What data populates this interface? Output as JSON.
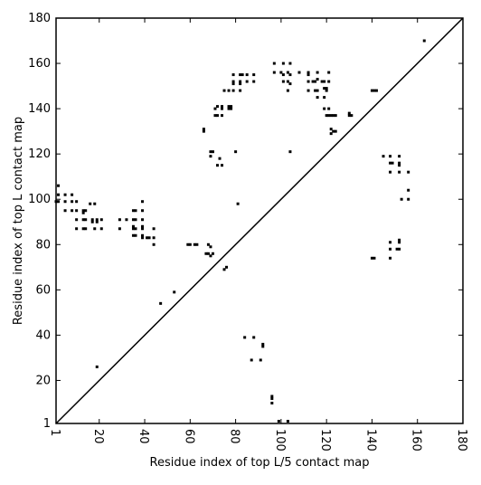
{
  "chart_data": {
    "type": "scatter",
    "x_label": "Residue index of top L/5 contact map",
    "y_label": "Residue index of top L contact map",
    "xlim": [
      1,
      180
    ],
    "ylim": [
      1,
      180
    ],
    "xticks": [
      1,
      20,
      40,
      60,
      80,
      100,
      120,
      140,
      160,
      180
    ],
    "yticks": [
      1,
      20,
      40,
      60,
      80,
      100,
      120,
      140,
      160,
      180
    ],
    "color": "#000000",
    "x": [
      2,
      2,
      5,
      8,
      1,
      2,
      5,
      8,
      10,
      5,
      8,
      10,
      13,
      14,
      13,
      10,
      13,
      14,
      17,
      19,
      21,
      16,
      18,
      10,
      13,
      14,
      18,
      21,
      17,
      19,
      29,
      32,
      35,
      36,
      39,
      35,
      36,
      39,
      39,
      29,
      35,
      36,
      39,
      44,
      35,
      39,
      35,
      36,
      39,
      41,
      42,
      44,
      39,
      44,
      19,
      47,
      53,
      59,
      60,
      62,
      63,
      68,
      69,
      67,
      68,
      69,
      70,
      75,
      76,
      66,
      66,
      69,
      70,
      69,
      71,
      72,
      74,
      74,
      71,
      72,
      74,
      73,
      72,
      74,
      75,
      77,
      79,
      77,
      78,
      77,
      78,
      79,
      79,
      79,
      82,
      82,
      82,
      83,
      82,
      85,
      85,
      88,
      88,
      80,
      81,
      97,
      101,
      104,
      97,
      100,
      101,
      103,
      104,
      101,
      103,
      104,
      103,
      108,
      112,
      112,
      112,
      114,
      115,
      116,
      112,
      115,
      116,
      119,
      120,
      120,
      116,
      118,
      119,
      121,
      121,
      116,
      119,
      119,
      121,
      120,
      121,
      122,
      123,
      124,
      122,
      123,
      124,
      122,
      130,
      130,
      131,
      104,
      84,
      88,
      87,
      91,
      92,
      92,
      96,
      96,
      96,
      99,
      103,
      140,
      141,
      142,
      140,
      141,
      145,
      148,
      152,
      148,
      149,
      152,
      152,
      148,
      152,
      156,
      153,
      156,
      156,
      148,
      152,
      152,
      148,
      151,
      152,
      148,
      163
    ],
    "values": [
      106,
      102,
      102,
      102,
      99,
      99,
      99,
      99,
      99,
      95,
      95,
      95,
      95,
      95,
      94,
      91,
      91,
      91,
      91,
      91,
      91,
      98,
      98,
      87,
      87,
      87,
      87,
      87,
      90,
      90,
      91,
      91,
      91,
      91,
      91,
      95,
      95,
      95,
      99,
      87,
      87,
      87,
      87,
      87,
      88,
      88,
      84,
      84,
      84,
      83,
      83,
      83,
      83,
      80,
      26,
      54,
      59,
      80,
      80,
      80,
      80,
      80,
      79,
      76,
      76,
      75,
      76,
      69,
      70,
      131,
      130,
      121,
      121,
      119,
      140,
      141,
      141,
      140,
      137,
      137,
      137,
      118,
      115,
      115,
      148,
      148,
      148,
      141,
      141,
      140,
      140,
      155,
      152,
      151,
      155,
      152,
      151,
      155,
      148,
      152,
      155,
      152,
      155,
      121,
      98,
      160,
      160,
      160,
      156,
      156,
      155,
      156,
      155,
      152,
      152,
      151,
      148,
      156,
      156,
      155,
      152,
      152,
      152,
      153,
      148,
      148,
      148,
      149,
      149,
      148,
      156,
      152,
      152,
      152,
      156,
      145,
      145,
      140,
      140,
      137,
      137,
      137,
      137,
      137,
      131,
      130,
      130,
      129,
      138,
      137,
      137,
      121,
      39,
      39,
      29,
      29,
      36,
      35,
      13,
      12,
      10,
      2,
      2,
      148,
      148,
      148,
      74,
      74,
      119,
      119,
      119,
      116,
      116,
      116,
      115,
      112,
      112,
      112,
      100,
      100,
      104,
      81,
      82,
      81,
      78,
      78,
      78,
      74,
      170
    ]
  }
}
